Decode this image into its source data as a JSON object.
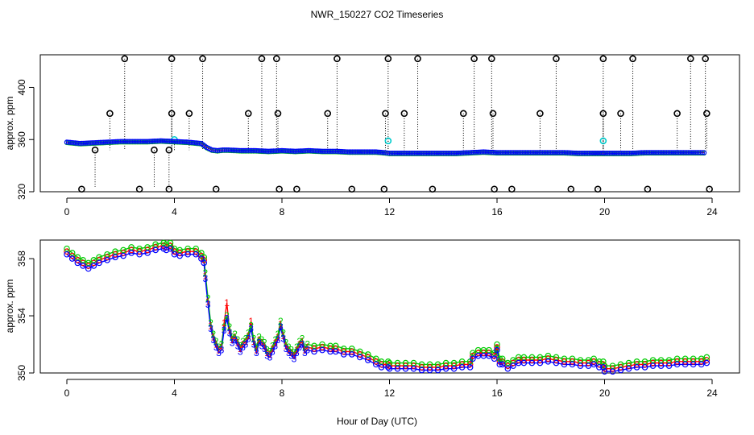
{
  "title": "NWR_150227  CO2 Timeseries",
  "xlabel": "Hour of Day (UTC)",
  "colors": {
    "axis": "#000000",
    "series_black": "#000000",
    "series_red": "#ff0000",
    "series_green": "#00cc00",
    "series_blue": "#0000ff",
    "series_cyan": "#00cccc"
  },
  "chart_data": [
    {
      "type": "scatter",
      "panel": "top",
      "title": "NWR_150227  CO2 Timeseries",
      "xlabel": "Hour of Day (UTC)",
      "ylabel": "approx. ppm",
      "xlim": [
        0,
        24
      ],
      "ylim": [
        320,
        425
      ],
      "xticks": [
        0,
        4,
        8,
        12,
        16,
        20,
        24
      ],
      "yticks": [
        320,
        360,
        400
      ],
      "grid": false,
      "series": [
        {
          "name": "flagged black circles (high)",
          "color": "#000000",
          "marker": "circle",
          "x": [
            2.15,
            3.9,
            5.05,
            7.25,
            7.8,
            10.05,
            11.95,
            13.05,
            15.15,
            15.8,
            18.2,
            19.95,
            21.05,
            23.2,
            23.75
          ],
          "y": [
            422,
            422,
            422,
            422,
            422,
            422,
            422,
            422,
            422,
            422,
            422,
            422,
            422,
            422,
            422
          ]
        },
        {
          "name": "flagged black circles (mid)",
          "color": "#000000",
          "marker": "circle",
          "x": [
            1.6,
            3.9,
            4.55,
            6.75,
            7.85,
            9.7,
            11.85,
            12.55,
            14.75,
            15.85,
            17.6,
            19.95,
            20.6,
            22.7,
            23.8
          ],
          "y": [
            380,
            380,
            380,
            380,
            380,
            380,
            380,
            380,
            380,
            380,
            380,
            380,
            380,
            380,
            380
          ]
        },
        {
          "name": "flagged black circles (low)",
          "color": "#000000",
          "marker": "circle",
          "x": [
            0.55,
            2.7,
            3.8,
            5.55,
            7.9,
            8.55,
            10.6,
            11.8,
            13.6,
            15.9,
            16.55,
            18.75,
            19.75,
            21.6,
            23.9
          ],
          "y": [
            322,
            322,
            322,
            322,
            322,
            322,
            322,
            322,
            322,
            322,
            322,
            322,
            322,
            322,
            322
          ]
        },
        {
          "name": "flagged black circles (near data)",
          "color": "#000000",
          "marker": "circle",
          "x": [
            1.05,
            3.25,
            3.8
          ],
          "y": [
            352,
            352,
            352
          ]
        },
        {
          "name": "cyan points",
          "color": "#00cccc",
          "marker": "circle",
          "x": [
            4.0,
            11.95,
            19.95
          ],
          "y": [
            360,
            359,
            359
          ]
        },
        {
          "name": "co2 data",
          "color": "#0000ff",
          "marker": "circle",
          "x": [
            0,
            0.5,
            1,
            1.5,
            2,
            2.5,
            3,
            3.5,
            4,
            4.5,
            5,
            5.2,
            5.4,
            5.6,
            5.8,
            6,
            6.5,
            7,
            7.5,
            8,
            8.5,
            9,
            9.5,
            10,
            10.5,
            11,
            11.5,
            11.8,
            12,
            12.5,
            13,
            13.5,
            14,
            14.5,
            15,
            15.5,
            16,
            16.5,
            17,
            17.5,
            18,
            18.5,
            19,
            19.5,
            19.9,
            20,
            20.5,
            21,
            21.5,
            22,
            22.5,
            23,
            23.5,
            23.7
          ],
          "y": [
            358,
            357,
            357.5,
            358,
            358.5,
            358.5,
            358.5,
            359,
            358.5,
            358,
            357,
            354,
            352,
            351.5,
            352,
            352,
            351.5,
            351.5,
            351,
            351.5,
            351,
            351.5,
            351,
            351,
            350.5,
            350.5,
            350.5,
            350,
            349.5,
            349.5,
            349.5,
            349.5,
            349.5,
            349.5,
            350,
            350.5,
            350,
            350,
            350,
            350,
            350,
            350,
            349.5,
            349.5,
            349.5,
            349.5,
            349.5,
            349.5,
            350,
            350,
            350,
            350,
            350,
            350
          ]
        }
      ]
    },
    {
      "type": "line",
      "panel": "bottom",
      "xlabel": "Hour of Day (UTC)",
      "ylabel": "approx. ppm",
      "xlim": [
        0,
        24
      ],
      "ylim": [
        350,
        359.3
      ],
      "xticks": [
        0,
        4,
        8,
        12,
        16,
        20,
        24
      ],
      "yticks": [
        350,
        354,
        358
      ],
      "grid": false,
      "series": [
        {
          "name": "1",
          "color": "#ff0000",
          "x": [
            0,
            0.2,
            0.4,
            0.6,
            0.8,
            1,
            1.2,
            1.5,
            1.8,
            2.1,
            2.4,
            2.7,
            3,
            3.3,
            3.6,
            3.7,
            3.85,
            4,
            4.2,
            4.5,
            4.8,
            5,
            5.1,
            5.15,
            5.25,
            5.35,
            5.45,
            5.55,
            5.65,
            5.75,
            5.85,
            5.95,
            6.05,
            6.15,
            6.25,
            6.35,
            6.45,
            6.55,
            6.65,
            6.75,
            6.85,
            6.95,
            7.05,
            7.15,
            7.25,
            7.35,
            7.45,
            7.55,
            7.65,
            7.75,
            7.85,
            7.95,
            8.05,
            8.15,
            8.25,
            8.35,
            8.45,
            8.55,
            8.65,
            8.75,
            8.85,
            8.95,
            9.2,
            9.5,
            9.8,
            10,
            10.3,
            10.6,
            10.9,
            11.2,
            11.5,
            11.7,
            11.95,
            12,
            12.3,
            12.6,
            12.9,
            13.2,
            13.5,
            13.8,
            14.1,
            14.4,
            14.7,
            15,
            15.1,
            15.3,
            15.5,
            15.7,
            15.9,
            16,
            16.1,
            16.2,
            16.4,
            16.6,
            16.8,
            17,
            17.3,
            17.6,
            17.9,
            18.2,
            18.5,
            18.8,
            19.1,
            19.4,
            19.6,
            19.8,
            19.95,
            20,
            20.3,
            20.6,
            20.9,
            21.2,
            21.5,
            21.8,
            22.1,
            22.4,
            22.7,
            23,
            23.3,
            23.6,
            23.8
          ],
          "y": [
            358.5,
            358.2,
            357.9,
            357.7,
            357.5,
            357.7,
            357.9,
            358.1,
            358.3,
            358.4,
            358.6,
            358.5,
            358.6,
            358.8,
            358.9,
            358.8,
            358.9,
            358.5,
            358.4,
            358.5,
            358.5,
            358.2,
            357.9,
            356.8,
            355,
            353.3,
            352.5,
            352,
            351.6,
            351.8,
            353.5,
            354.9,
            353,
            352.3,
            352.5,
            352.1,
            351.7,
            352,
            352.2,
            352.6,
            353.6,
            352.2,
            351.6,
            352.3,
            352.1,
            351.9,
            351.4,
            351.3,
            351.7,
            352.1,
            352.5,
            353.4,
            352.6,
            351.9,
            351.6,
            351.4,
            351.2,
            351.6,
            352,
            352.2,
            351.6,
            351.8,
            351.7,
            351.8,
            351.7,
            351.7,
            351.5,
            351.5,
            351.3,
            351.1,
            350.8,
            350.6,
            350.6,
            350.5,
            350.5,
            350.5,
            350.5,
            350.4,
            350.4,
            350.4,
            350.5,
            350.5,
            350.6,
            350.6,
            351.2,
            351.4,
            351.4,
            351.4,
            351.2,
            351.8,
            350.8,
            350.8,
            350.5,
            350.7,
            350.9,
            350.9,
            350.9,
            350.9,
            351,
            350.9,
            350.8,
            350.8,
            350.7,
            350.7,
            350.8,
            350.6,
            350.6,
            350.3,
            350.3,
            350.4,
            350.5,
            350.6,
            350.6,
            350.7,
            350.7,
            350.7,
            350.8,
            350.8,
            350.8,
            350.8,
            350.9
          ]
        },
        {
          "name": "2",
          "color": "#00cc00",
          "x": [
            0,
            0.2,
            0.4,
            0.6,
            0.8,
            1,
            1.2,
            1.5,
            1.8,
            2.1,
            2.4,
            2.7,
            3,
            3.3,
            3.6,
            3.7,
            3.85,
            4,
            4.2,
            4.5,
            4.8,
            5,
            5.1,
            5.15,
            5.25,
            5.35,
            5.45,
            5.55,
            5.65,
            5.75,
            5.85,
            5.95,
            6.05,
            6.15,
            6.25,
            6.35,
            6.45,
            6.55,
            6.65,
            6.75,
            6.85,
            6.95,
            7.05,
            7.15,
            7.25,
            7.35,
            7.45,
            7.55,
            7.65,
            7.75,
            7.85,
            7.95,
            8.05,
            8.15,
            8.25,
            8.35,
            8.45,
            8.55,
            8.65,
            8.75,
            8.85,
            8.95,
            9.2,
            9.5,
            9.8,
            10,
            10.3,
            10.6,
            10.9,
            11.2,
            11.5,
            11.7,
            11.95,
            12,
            12.3,
            12.6,
            12.9,
            13.2,
            13.5,
            13.8,
            14.1,
            14.4,
            14.7,
            15,
            15.1,
            15.3,
            15.5,
            15.7,
            15.9,
            16,
            16.1,
            16.2,
            16.4,
            16.6,
            16.8,
            17,
            17.3,
            17.6,
            17.9,
            18.2,
            18.5,
            18.8,
            19.1,
            19.4,
            19.6,
            19.8,
            19.95,
            20,
            20.3,
            20.6,
            20.9,
            21.2,
            21.5,
            21.8,
            22.1,
            22.4,
            22.7,
            23,
            23.3,
            23.6,
            23.8
          ],
          "y": [
            358.7,
            358.4,
            358.1,
            357.9,
            357.7,
            357.9,
            358.1,
            358.3,
            358.5,
            358.6,
            358.8,
            358.7,
            358.8,
            359,
            359.1,
            359,
            359.1,
            358.7,
            358.6,
            358.7,
            358.7,
            358.4,
            358.1,
            357,
            355.2,
            353.5,
            352.7,
            352.2,
            351.8,
            352,
            353.2,
            354,
            353.2,
            352.5,
            352.7,
            352.3,
            351.9,
            352.2,
            352.4,
            352.8,
            353.3,
            352.4,
            351.8,
            352.5,
            352.3,
            352.1,
            351.6,
            351.5,
            351.9,
            352.3,
            352.7,
            353.6,
            352.8,
            352.1,
            351.8,
            351.6,
            351.4,
            351.8,
            352.2,
            352.4,
            351.8,
            352,
            351.9,
            352,
            351.9,
            351.9,
            351.7,
            351.7,
            351.5,
            351.3,
            351,
            350.8,
            350.8,
            350.7,
            350.7,
            350.7,
            350.7,
            350.6,
            350.6,
            350.6,
            350.7,
            350.7,
            350.8,
            350.8,
            351.4,
            351.6,
            351.6,
            351.6,
            351.4,
            352,
            351,
            351,
            350.7,
            350.9,
            351.1,
            351.1,
            351.1,
            351.1,
            351.2,
            351.1,
            351,
            351,
            350.9,
            350.9,
            351,
            350.8,
            350.8,
            350.5,
            350.5,
            350.6,
            350.7,
            350.8,
            350.8,
            350.9,
            350.9,
            350.9,
            351,
            351,
            351,
            351,
            351.1
          ]
        },
        {
          "name": "3",
          "color": "#0000ff",
          "x": [
            0,
            0.2,
            0.4,
            0.6,
            0.8,
            1,
            1.2,
            1.5,
            1.8,
            2.1,
            2.4,
            2.7,
            3,
            3.3,
            3.6,
            3.7,
            3.85,
            4,
            4.2,
            4.5,
            4.8,
            5,
            5.1,
            5.15,
            5.25,
            5.35,
            5.45,
            5.55,
            5.65,
            5.75,
            5.85,
            5.95,
            6.05,
            6.15,
            6.25,
            6.35,
            6.45,
            6.55,
            6.65,
            6.75,
            6.85,
            6.95,
            7.05,
            7.15,
            7.25,
            7.35,
            7.45,
            7.55,
            7.65,
            7.75,
            7.85,
            7.95,
            8.05,
            8.15,
            8.25,
            8.35,
            8.45,
            8.55,
            8.65,
            8.75,
            8.85,
            8.95,
            9.2,
            9.5,
            9.8,
            10,
            10.3,
            10.6,
            10.9,
            11.2,
            11.5,
            11.7,
            11.95,
            12,
            12.3,
            12.6,
            12.9,
            13.2,
            13.5,
            13.8,
            14.1,
            14.4,
            14.7,
            15,
            15.1,
            15.3,
            15.5,
            15.7,
            15.9,
            16,
            16.1,
            16.2,
            16.4,
            16.6,
            16.8,
            17,
            17.3,
            17.6,
            17.9,
            18.2,
            18.5,
            18.8,
            19.1,
            19.4,
            19.6,
            19.8,
            19.95,
            20,
            20.3,
            20.6,
            20.9,
            21.2,
            21.5,
            21.8,
            22.1,
            22.4,
            22.7,
            23,
            23.3,
            23.6,
            23.8
          ],
          "y": [
            358.3,
            358,
            357.7,
            357.5,
            357.3,
            357.5,
            357.7,
            357.9,
            358.1,
            358.2,
            358.4,
            358.3,
            358.4,
            358.6,
            358.7,
            358.6,
            358.7,
            358.3,
            358.2,
            358.3,
            358.3,
            358,
            357.7,
            356.6,
            354.8,
            353.1,
            352.3,
            351.8,
            351.4,
            351.6,
            353,
            353.8,
            352.8,
            352.1,
            352.3,
            351.9,
            351.5,
            351.8,
            352,
            352.4,
            353.1,
            352,
            351.4,
            352.1,
            351.9,
            351.7,
            351.2,
            351.1,
            351.5,
            351.9,
            352.3,
            353.2,
            352.4,
            351.7,
            351.4,
            351.2,
            351,
            351.4,
            351.8,
            352,
            351.4,
            351.6,
            351.5,
            351.6,
            351.5,
            351.5,
            351.3,
            351.3,
            351.1,
            350.9,
            350.6,
            350.4,
            350.4,
            350.3,
            350.3,
            350.3,
            350.3,
            350.2,
            350.2,
            350.2,
            350.3,
            350.3,
            350.4,
            350.4,
            351,
            351.2,
            351.2,
            351.2,
            351,
            351.6,
            350.6,
            350.6,
            350.3,
            350.5,
            350.7,
            350.7,
            350.7,
            350.7,
            350.8,
            350.7,
            350.6,
            350.6,
            350.5,
            350.5,
            350.6,
            350.4,
            350.4,
            350.1,
            350.1,
            350.2,
            350.3,
            350.4,
            350.4,
            350.5,
            350.5,
            350.5,
            350.6,
            350.6,
            350.6,
            350.6,
            350.7
          ]
        }
      ]
    }
  ]
}
